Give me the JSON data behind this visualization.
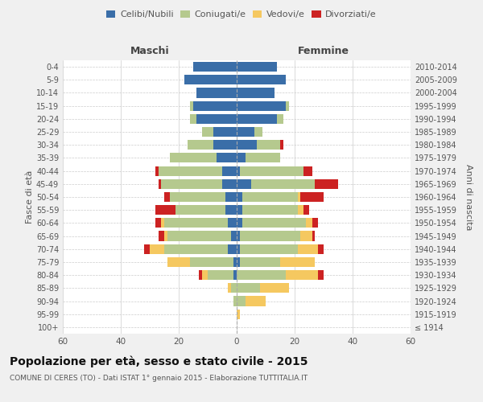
{
  "age_groups": [
    "100+",
    "95-99",
    "90-94",
    "85-89",
    "80-84",
    "75-79",
    "70-74",
    "65-69",
    "60-64",
    "55-59",
    "50-54",
    "45-49",
    "40-44",
    "35-39",
    "30-34",
    "25-29",
    "20-24",
    "15-19",
    "10-14",
    "5-9",
    "0-4"
  ],
  "birth_years": [
    "≤ 1914",
    "1915-1919",
    "1920-1924",
    "1925-1929",
    "1930-1934",
    "1935-1939",
    "1940-1944",
    "1945-1949",
    "1950-1954",
    "1955-1959",
    "1960-1964",
    "1965-1969",
    "1970-1974",
    "1975-1979",
    "1980-1984",
    "1985-1989",
    "1990-1994",
    "1995-1999",
    "2000-2004",
    "2005-2009",
    "2010-2014"
  ],
  "male": {
    "celibi": [
      0,
      0,
      0,
      0,
      1,
      1,
      3,
      2,
      3,
      4,
      4,
      5,
      5,
      7,
      8,
      8,
      14,
      15,
      14,
      18,
      15
    ],
    "coniugati": [
      0,
      0,
      1,
      2,
      9,
      15,
      22,
      22,
      22,
      17,
      19,
      21,
      22,
      16,
      9,
      4,
      2,
      1,
      0,
      0,
      0
    ],
    "vedovi": [
      0,
      0,
      0,
      1,
      2,
      8,
      5,
      1,
      1,
      0,
      0,
      0,
      0,
      0,
      0,
      0,
      0,
      0,
      0,
      0,
      0
    ],
    "divorziati": [
      0,
      0,
      0,
      0,
      1,
      0,
      2,
      2,
      2,
      7,
      2,
      1,
      1,
      0,
      0,
      0,
      0,
      0,
      0,
      0,
      0
    ]
  },
  "female": {
    "nubili": [
      0,
      0,
      0,
      0,
      0,
      1,
      1,
      1,
      2,
      2,
      2,
      5,
      1,
      3,
      7,
      6,
      14,
      17,
      13,
      17,
      14
    ],
    "coniugate": [
      0,
      0,
      3,
      8,
      17,
      14,
      20,
      21,
      22,
      19,
      19,
      22,
      22,
      12,
      8,
      3,
      2,
      1,
      0,
      0,
      0
    ],
    "vedove": [
      0,
      1,
      7,
      10,
      11,
      12,
      7,
      4,
      2,
      2,
      1,
      0,
      0,
      0,
      0,
      0,
      0,
      0,
      0,
      0,
      0
    ],
    "divorziate": [
      0,
      0,
      0,
      0,
      2,
      0,
      2,
      1,
      2,
      2,
      8,
      8,
      3,
      0,
      1,
      0,
      0,
      0,
      0,
      0,
      0
    ]
  },
  "colors": {
    "celibi": "#3a6ea8",
    "coniugati": "#b5c98e",
    "vedovi": "#f5c860",
    "divorziati": "#cc2222"
  },
  "xlim": 60,
  "title": "Popolazione per età, sesso e stato civile - 2015",
  "subtitle": "COMUNE DI CERES (TO) - Dati ISTAT 1° gennaio 2015 - Elaborazione TUTTITALIA.IT",
  "xlabel_left": "Maschi",
  "xlabel_right": "Femmine",
  "ylabel_left": "Fasce di età",
  "ylabel_right": "Anni di nascita",
  "bg_color": "#f0f0f0",
  "plot_bg": "#ffffff",
  "legend_labels": [
    "Celibi/Nubili",
    "Coniugati/e",
    "Vedovi/e",
    "Divorziati/e"
  ]
}
